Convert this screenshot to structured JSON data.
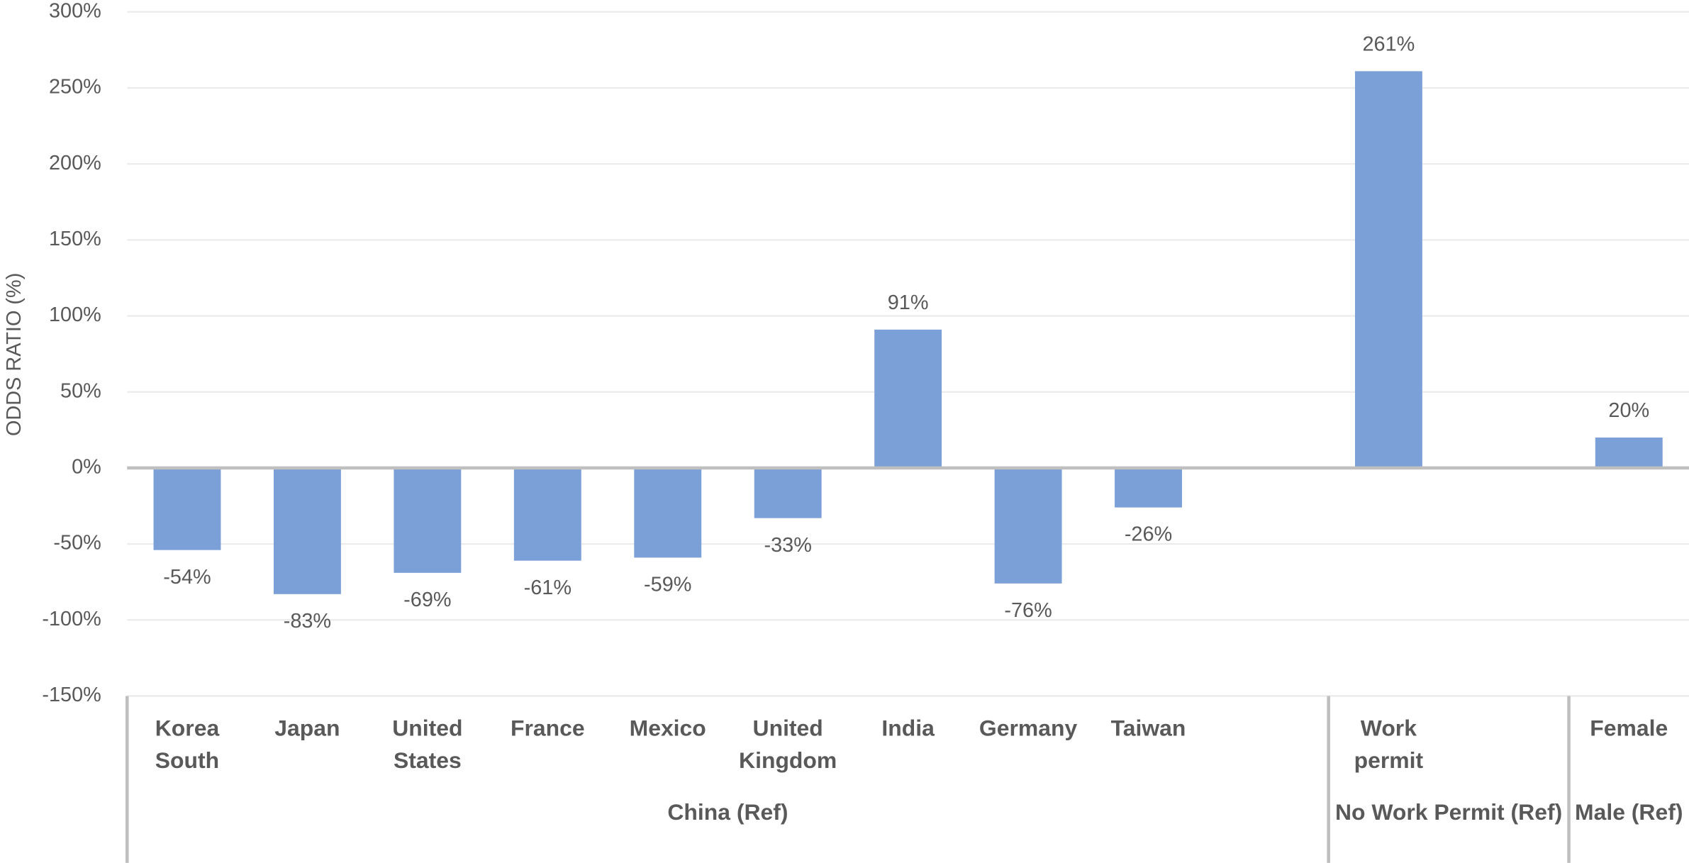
{
  "chart_data": {
    "type": "bar",
    "y_label": "ODDS RATIO (%)",
    "categories": [
      "Korea South",
      "Japan",
      "United States",
      "France",
      "Mexico",
      "United Kingdom",
      "India",
      "Germany",
      "Taiwan",
      null,
      "Work permit",
      null,
      "Female"
    ],
    "values": [
      -54,
      -83,
      -69,
      -61,
      -59,
      -33,
      91,
      -76,
      -26,
      null,
      261,
      null,
      20
    ],
    "value_labels": [
      "-54%",
      "-83%",
      "-69%",
      "-61%",
      "-59%",
      "-33%",
      "91%",
      "-76%",
      "-26%",
      null,
      "261%",
      null,
      "20%"
    ],
    "groups": [
      {
        "label": "China (Ref)",
        "count": 10
      },
      {
        "label": "No Work Permit (Ref)",
        "count": 2
      },
      {
        "label": "Male (Ref)",
        "count": 1
      }
    ],
    "color": "#7b9fd7",
    "ylim": [
      -150,
      300
    ],
    "yticks": [
      {
        "value": -150,
        "label": "-150%"
      },
      {
        "value": -100,
        "label": "-100%"
      },
      {
        "value": -50,
        "label": "-50%"
      },
      {
        "value": 0,
        "label": "0%"
      },
      {
        "value": 50,
        "label": "50%"
      },
      {
        "value": 100,
        "label": "100%"
      },
      {
        "value": 150,
        "label": "150%"
      },
      {
        "value": 200,
        "label": "200%"
      },
      {
        "value": 250,
        "label": "250%"
      },
      {
        "value": 300,
        "label": "300%"
      }
    ],
    "grid": true
  }
}
